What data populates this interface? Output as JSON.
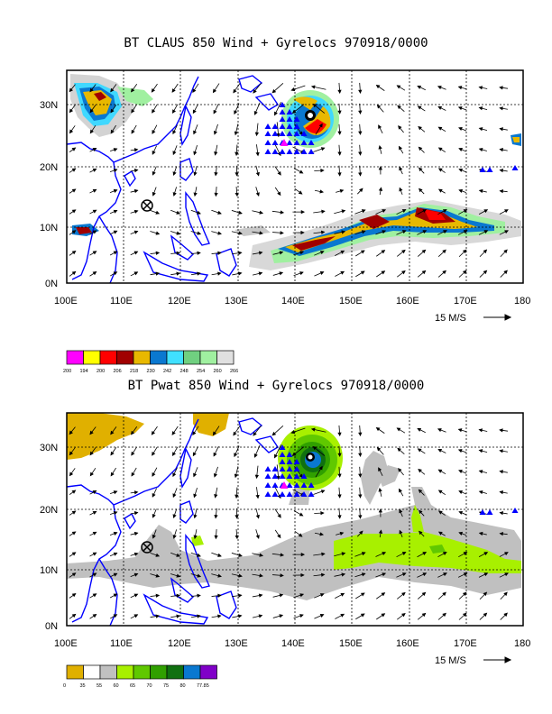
{
  "panels": [
    {
      "id": "claus",
      "title": "BT CLAUS 850 Wind + Gyrelocs 970918/0000",
      "y_labels": [
        "30N",
        "20N",
        "10N",
        "0N"
      ],
      "x_labels": [
        "100E",
        "110E",
        "120E",
        "130E",
        "140E",
        "150E",
        "160E",
        "170E",
        "180"
      ],
      "scale_label": "15 M/S",
      "legend": {
        "colors": [
          "#ff00ff",
          "#ffff00",
          "#ff0000",
          "#a00000",
          "#e8b800",
          "#0a78d0",
          "#40e0ff",
          "#70d080",
          "#a0f0a0",
          "#e0e0e0"
        ],
        "labels": [
          "200",
          "194",
          "200",
          "206",
          "218",
          "230",
          "242",
          "248",
          "254",
          "260",
          "266"
        ]
      }
    },
    {
      "id": "pwat",
      "title": "BT Pwat 850 Wind + Gyrelocs 970918/0000",
      "y_labels": [
        "30N",
        "20N",
        "10N",
        "0N"
      ],
      "x_labels": [
        "100E",
        "110E",
        "120E",
        "130E",
        "140E",
        "150E",
        "160E",
        "170E",
        "180"
      ],
      "scale_label": "15 M/S",
      "legend": {
        "colors": [
          "#e0b000",
          "#ffffff",
          "#c0c0c0",
          "#a8f000",
          "#60c800",
          "#30a000",
          "#107010",
          "#0a78d0",
          "#8000c8"
        ],
        "labels": [
          "0",
          "35",
          "55",
          "60",
          "65",
          "70",
          "75",
          "80",
          "77.85"
        ]
      }
    }
  ],
  "colors": {
    "coast": "#0000ff",
    "gyre_triangle": "#0000ff",
    "gyre_center": "#ff00ff"
  },
  "markers": [
    "gyre-triangles",
    "crossed-circle-marker",
    "typhoon-center"
  ]
}
